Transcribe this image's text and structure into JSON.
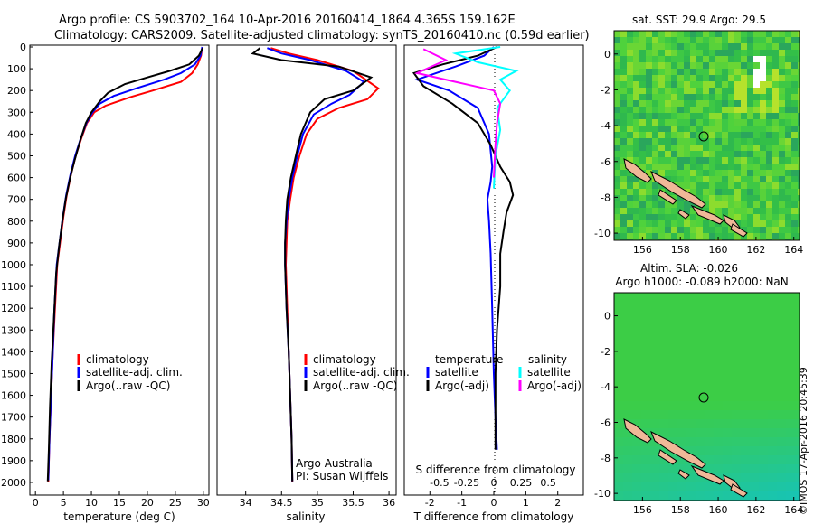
{
  "header": {
    "title_line1": "Argo profile: CS 5903702_164 10-Apr-2016 20160414_1864 4.365S 159.162E",
    "title_line2": "Climatology: CARS2009. Satellite-adjusted climatology: synTS_20160410.nc (0.59d earlier)"
  },
  "footer": {
    "stamp": "©IMOS 17-Apr-2016 20:45:39"
  },
  "colors": {
    "climatology": "#ff0000",
    "satellite": "#0000ff",
    "argo": "#000000",
    "sat_salinity": "#00ffff",
    "argo_salinity": "#ff00ff"
  },
  "chart_data": [
    {
      "type": "line",
      "id": "temperature",
      "xlabel": "temperature (deg C)",
      "ylim": [
        0,
        2050
      ],
      "xlim": [
        -1,
        31
      ],
      "y_reversed": true,
      "xticks": [
        0,
        5,
        10,
        15,
        20,
        25,
        30
      ],
      "yticks": [
        0,
        100,
        200,
        300,
        400,
        500,
        600,
        700,
        800,
        900,
        1000,
        1100,
        1200,
        1300,
        1400,
        1500,
        1600,
        1700,
        1800,
        1900,
        2000
      ],
      "legend": [
        "climatology",
        "satellite-adj. clim.",
        "Argo(..raw -QC)"
      ],
      "series": [
        {
          "name": "climatology",
          "color": "#ff0000",
          "points": [
            [
              29.8,
              0
            ],
            [
              29.6,
              40
            ],
            [
              29,
              80
            ],
            [
              28,
              120
            ],
            [
              26,
              160
            ],
            [
              21,
              200
            ],
            [
              17,
              230
            ],
            [
              12.5,
              270
            ],
            [
              10.5,
              300
            ],
            [
              9.2,
              350
            ],
            [
              8.2,
              420
            ],
            [
              7.2,
              500
            ],
            [
              6.4,
              580
            ],
            [
              5.6,
              680
            ],
            [
              5,
              780
            ],
            [
              4.4,
              900
            ],
            [
              3.9,
              1000
            ],
            [
              3.5,
              1200
            ],
            [
              3.1,
              1400
            ],
            [
              2.8,
              1600
            ],
            [
              2.5,
              1800
            ],
            [
              2.3,
              2000
            ]
          ]
        },
        {
          "name": "satellite-adj. clim.",
          "color": "#0000ff",
          "points": [
            [
              29.8,
              0
            ],
            [
              29.5,
              40
            ],
            [
              28.5,
              80
            ],
            [
              26,
              120
            ],
            [
              23,
              150
            ],
            [
              18,
              190
            ],
            [
              14,
              225
            ],
            [
              11.5,
              260
            ],
            [
              10.2,
              300
            ],
            [
              9.1,
              350
            ],
            [
              8.1,
              420
            ],
            [
              7.1,
              500
            ],
            [
              6.3,
              580
            ],
            [
              5.5,
              680
            ],
            [
              4.9,
              780
            ],
            [
              4.3,
              900
            ],
            [
              3.8,
              1000
            ],
            [
              3.4,
              1200
            ],
            [
              3.1,
              1400
            ],
            [
              2.8,
              1600
            ],
            [
              2.5,
              1800
            ],
            [
              2.3,
              1990
            ]
          ]
        },
        {
          "name": "Argo(..raw -QC)",
          "color": "#000000",
          "points": [
            [
              29.9,
              5
            ],
            [
              29.2,
              40
            ],
            [
              27.5,
              80
            ],
            [
              24,
              110
            ],
            [
              20,
              140
            ],
            [
              16,
              170
            ],
            [
              13,
              210
            ],
            [
              11.5,
              250
            ],
            [
              10,
              300
            ],
            [
              9,
              350
            ],
            [
              8,
              430
            ],
            [
              7,
              520
            ],
            [
              6.2,
              600
            ],
            [
              5.4,
              700
            ],
            [
              4.8,
              800
            ],
            [
              4.2,
              920
            ],
            [
              3.7,
              1040
            ],
            [
              3.3,
              1250
            ],
            [
              2.9,
              1450
            ],
            [
              2.6,
              1650
            ],
            [
              2.4,
              1850
            ],
            [
              2.2,
              1995
            ]
          ]
        }
      ]
    },
    {
      "type": "line",
      "id": "salinity",
      "xlabel": "salinity",
      "ylim": [
        0,
        2050
      ],
      "xlim": [
        33.6,
        36.1
      ],
      "y_reversed": true,
      "xticks": [
        34,
        34.5,
        35,
        35.5,
        36
      ],
      "legend": [
        "climatology",
        "satellite-adj. clim.",
        "Argo(..raw -QC)"
      ],
      "annotation": [
        "Argo Australia",
        "PI: Susan Wijffels"
      ],
      "series": [
        {
          "name": "climatology",
          "color": "#ff0000",
          "points": [
            [
              34.35,
              5
            ],
            [
              34.6,
              30
            ],
            [
              35,
              60
            ],
            [
              35.5,
              110
            ],
            [
              35.85,
              190
            ],
            [
              35.7,
              240
            ],
            [
              35.3,
              280
            ],
            [
              35,
              330
            ],
            [
              34.85,
              400
            ],
            [
              34.75,
              500
            ],
            [
              34.67,
              600
            ],
            [
              34.62,
              700
            ],
            [
              34.58,
              800
            ],
            [
              34.57,
              900
            ],
            [
              34.56,
              1000
            ],
            [
              34.58,
              1200
            ],
            [
              34.6,
              1400
            ],
            [
              34.62,
              1600
            ],
            [
              34.64,
              1800
            ],
            [
              34.65,
              2000
            ]
          ]
        },
        {
          "name": "satellite-adj. clim.",
          "color": "#0000ff",
          "points": [
            [
              34.3,
              5
            ],
            [
              34.5,
              30
            ],
            [
              34.9,
              60
            ],
            [
              35.4,
              110
            ],
            [
              35.65,
              160
            ],
            [
              35.45,
              220
            ],
            [
              35.2,
              260
            ],
            [
              34.95,
              310
            ],
            [
              34.8,
              400
            ],
            [
              34.72,
              500
            ],
            [
              34.65,
              600
            ],
            [
              34.6,
              700
            ],
            [
              34.57,
              800
            ],
            [
              34.55,
              900
            ],
            [
              34.55,
              1000
            ],
            [
              34.57,
              1200
            ],
            [
              34.6,
              1400
            ],
            [
              34.62,
              1600
            ],
            [
              34.64,
              1800
            ],
            [
              34.65,
              1995
            ]
          ]
        },
        {
          "name": "Argo(..raw -QC)",
          "color": "#000000",
          "points": [
            [
              34.2,
              5
            ],
            [
              34.1,
              30
            ],
            [
              34.5,
              60
            ],
            [
              35.3,
              90
            ],
            [
              35.75,
              140
            ],
            [
              35.5,
              200
            ],
            [
              35.1,
              240
            ],
            [
              34.9,
              300
            ],
            [
              34.77,
              400
            ],
            [
              34.7,
              500
            ],
            [
              34.63,
              600
            ],
            [
              34.58,
              700
            ],
            [
              34.56,
              800
            ],
            [
              34.55,
              900
            ],
            [
              34.55,
              1000
            ],
            [
              34.57,
              1200
            ],
            [
              34.6,
              1400
            ],
            [
              34.62,
              1600
            ],
            [
              34.64,
              1800
            ],
            [
              34.65,
              1995
            ]
          ]
        }
      ]
    },
    {
      "type": "line",
      "id": "difference",
      "xlabel": "T difference from climatology",
      "xlabel2": "S difference from climatology",
      "ylim": [
        0,
        2050
      ],
      "xlim": [
        -2.8,
        2.8
      ],
      "y_reversed": true,
      "xticks": [
        -2,
        -1,
        0,
        1,
        2
      ],
      "xticks_s": [
        "-0.5",
        "-0.25",
        "0",
        "0.25",
        "0.5"
      ],
      "legend_t_title": "temperature",
      "legend_s_title": "salinity",
      "legend": [
        "satellite",
        "Argo(-adj)",
        "satellite",
        "Argo(-adj)"
      ],
      "series": [
        {
          "name": "satellite",
          "color": "#0000ff",
          "points": [
            [
              0,
              0
            ],
            [
              -0.3,
              40
            ],
            [
              -1.2,
              90
            ],
            [
              -2.4,
              150
            ],
            [
              -1.4,
              200
            ],
            [
              -0.5,
              280
            ],
            [
              -0.15,
              400
            ],
            [
              -0.05,
              550
            ],
            [
              -0.1,
              620
            ],
            [
              -0.2,
              700
            ],
            [
              -0.15,
              800
            ],
            [
              -0.1,
              950
            ],
            [
              -0.05,
              1200
            ],
            [
              0,
              1500
            ],
            [
              0.05,
              1700
            ],
            [
              0.1,
              1850
            ]
          ]
        },
        {
          "name": "Argo(-adj)",
          "color": "#000000",
          "points": [
            [
              0.1,
              0
            ],
            [
              -0.5,
              40
            ],
            [
              -1.6,
              80
            ],
            [
              -2.5,
              120
            ],
            [
              -2.2,
              180
            ],
            [
              -1.3,
              260
            ],
            [
              -0.5,
              350
            ],
            [
              -0.1,
              450
            ],
            [
              0.2,
              550
            ],
            [
              0.5,
              620
            ],
            [
              0.6,
              680
            ],
            [
              0.4,
              760
            ],
            [
              0.3,
              850
            ],
            [
              0.2,
              950
            ],
            [
              0.2,
              1100
            ],
            [
              0.1,
              1300
            ],
            [
              0.05,
              1500
            ],
            [
              0.05,
              1700
            ],
            [
              0.05,
              1850
            ]
          ]
        },
        {
          "name": "satellite",
          "color": "#00ffff",
          "points": [
            [
              0.2,
              0
            ],
            [
              -1.2,
              30
            ],
            [
              -0.5,
              70
            ],
            [
              0.7,
              110
            ],
            [
              0.2,
              150
            ],
            [
              0.5,
              200
            ],
            [
              0.1,
              280
            ],
            [
              0.2,
              380
            ],
            [
              0.05,
              500
            ],
            [
              0,
              650
            ]
          ]
        },
        {
          "name": "Argo(-adj)",
          "color": "#ff00ff",
          "points": [
            [
              -2.2,
              10
            ],
            [
              -1.5,
              60
            ],
            [
              -2.4,
              120
            ],
            [
              -1.2,
              160
            ],
            [
              0,
              200
            ],
            [
              0.2,
              260
            ],
            [
              0.1,
              350
            ],
            [
              0.05,
              450
            ],
            [
              0,
              600
            ]
          ]
        }
      ]
    },
    {
      "type": "heatmap",
      "id": "sst-map",
      "title": "sat. SST: 29.9 Argo: 29.5",
      "xticks": [
        156,
        158,
        160,
        162,
        164
      ],
      "yticks": [
        0,
        -2,
        -4,
        -6,
        -8,
        -10
      ],
      "marker": {
        "lon": 159.162,
        "lat": -4.365
      }
    },
    {
      "type": "heatmap",
      "id": "sla-map",
      "title_line1": "Altim. SLA: -0.026",
      "title_line2": "Argo h1000: -0.089 h2000: NaN",
      "xticks": [
        156,
        158,
        160,
        162,
        164
      ],
      "yticks": [
        0,
        -2,
        -4,
        -6,
        -8,
        -10
      ],
      "marker": {
        "lon": 159.162,
        "lat": -4.365
      }
    }
  ]
}
